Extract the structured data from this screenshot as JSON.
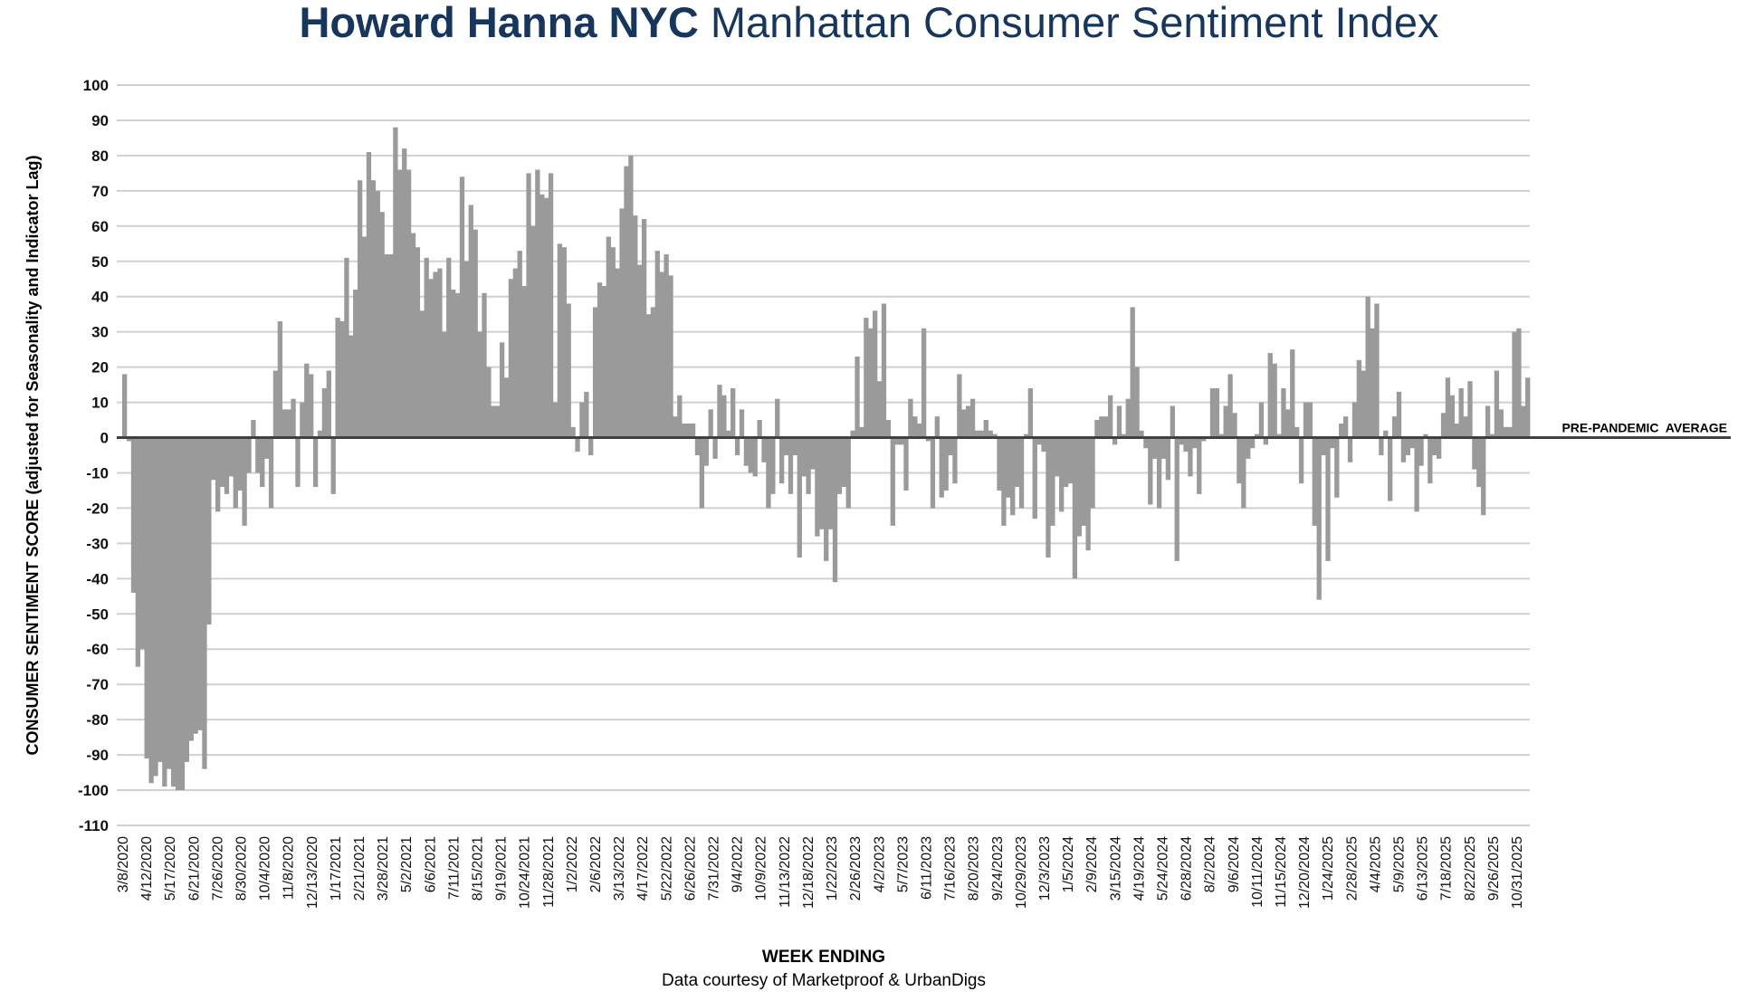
{
  "header": {
    "brand": "Howard Hanna NYC",
    "title_rest": "Manhattan Consumer Sentiment Index"
  },
  "footer": {
    "xlabel": "WEEK ENDING",
    "credit": "Data courtesy of Marketproof & UrbanDigs"
  },
  "colors": {
    "bar": "#9a9a9a",
    "grid": "#d0d0d0",
    "zero_line": "#404040",
    "title": "#17365d"
  },
  "chart_data": {
    "type": "bar",
    "title": "Howard Hanna NYC Manhattan Consumer Sentiment Index",
    "xlabel": "WEEK ENDING",
    "ylabel": "CONSUMER SENTIMENT SCORE (adjusted for Seasonality and Indicator Lag)",
    "ylim": [
      -110,
      100
    ],
    "yticks": [
      100,
      90,
      80,
      70,
      60,
      50,
      40,
      30,
      20,
      10,
      0,
      -10,
      -20,
      -30,
      -40,
      -50,
      -60,
      -70,
      -80,
      -90,
      -100,
      -110
    ],
    "grid": true,
    "reference_line": {
      "value": 0,
      "label": "PRE-PANDEMIC  AVERAGE"
    },
    "x_tick_labels": [
      "3/8/2020",
      "4/12/2020",
      "5/17/2020",
      "6/21/2020",
      "7/26/2020",
      "8/30/2020",
      "10/4/2020",
      "11/8/2020",
      "12/13/2020",
      "1/17/2021",
      "2/21/2021",
      "3/28/2021",
      "5/2/2021",
      "6/6/2021",
      "7/11/2021",
      "8/15/2021",
      "9/19/2021",
      "10/24/2021",
      "11/28/2021",
      "1/2/2022",
      "2/6/2022",
      "3/13/2022",
      "4/17/2022",
      "5/22/2022",
      "6/26/2022",
      "7/31/2022",
      "9/4/2022",
      "10/9/2022",
      "11/13/2022",
      "12/18/2022",
      "1/22/2023",
      "2/26/2023",
      "4/2/2023",
      "5/7/2023",
      "6/11/2023",
      "7/16/2023",
      "8/20/2023",
      "9/24/2023",
      "10/29/2023",
      "12/3/2023",
      "1/5/2024",
      "2/9/2024",
      "3/15/2024",
      "4/19/2024",
      "5/24/2024",
      "6/28/2024",
      "8/2/2024",
      "9/6/2024",
      "10/11/2024",
      "11/15/2024",
      "12/20/2024",
      "1/24/2025",
      "2/28/2025",
      "4/4/2025",
      "5/9/2025",
      "6/13/2025",
      "7/18/2025",
      "8/22/2025",
      "9/26/2025",
      "10/31/2025"
    ],
    "series": [
      {
        "values": [
          18,
          -1,
          -44,
          -65,
          -60,
          -91,
          -98,
          -96,
          -92,
          -99,
          -94,
          -99,
          -100,
          -100,
          -92,
          -86,
          -84,
          -83,
          -94,
          -53,
          -12,
          -21,
          -14,
          -16,
          -11,
          -20,
          -15,
          -25,
          -10,
          5,
          -10,
          -14,
          -6,
          -20,
          19,
          33,
          8,
          8,
          11,
          -14,
          10,
          21,
          18,
          -14,
          2,
          14,
          19,
          -16,
          34,
          33,
          51,
          29,
          42,
          73,
          57,
          81,
          73,
          70,
          64,
          52,
          52,
          88,
          76,
          82,
          76,
          58,
          54,
          36,
          51,
          45,
          47,
          48,
          30,
          51,
          42,
          41,
          74,
          50,
          66,
          59,
          30,
          41,
          20,
          9,
          9,
          27,
          17,
          45,
          48,
          53,
          43,
          75,
          60,
          76,
          69,
          68,
          75,
          10,
          55,
          54,
          38,
          3,
          -4,
          10,
          13,
          -5,
          37,
          44,
          43,
          57,
          54,
          48,
          65,
          77,
          80,
          63,
          49,
          62,
          35,
          37,
          53,
          47,
          52,
          46,
          6,
          12,
          4,
          4,
          4,
          -5,
          -20,
          -8,
          8,
          -6,
          15,
          12,
          2,
          14,
          -5,
          8,
          -8,
          -10,
          -11,
          5,
          -7,
          -20,
          -16,
          11,
          -13,
          -5,
          -16,
          -5,
          -34,
          -11,
          -16,
          -9,
          -28,
          -26,
          -35,
          -26,
          -41,
          -16,
          -14,
          -20,
          2,
          23,
          3,
          34,
          31,
          36,
          16,
          38,
          5,
          -25,
          -2,
          -2,
          -15,
          11,
          6,
          4,
          31,
          -1,
          -20,
          6,
          -17,
          -15,
          -5,
          -13,
          18,
          8,
          9,
          11,
          2,
          2,
          5,
          2,
          1,
          -15,
          -25,
          -17,
          -22,
          -14,
          -20,
          1,
          14,
          -23,
          -2,
          -4,
          -34,
          -25,
          -11,
          -21,
          -14,
          -13,
          -40,
          -28,
          -25,
          -32,
          -20,
          5,
          6,
          6,
          12,
          -2,
          9,
          1,
          11,
          37,
          20,
          2,
          -3,
          -19,
          -6,
          -20,
          -6,
          -12,
          9,
          -35,
          -2,
          -4,
          -11,
          -3,
          -16,
          -1,
          0,
          14,
          14,
          1,
          9,
          18,
          7,
          -13,
          -20,
          -6,
          -3,
          1,
          10,
          -2,
          24,
          21,
          1,
          14,
          8,
          25,
          3,
          -13,
          10,
          10,
          -25,
          -46,
          -5,
          -35,
          -3,
          -17,
          4,
          6,
          -7,
          10,
          22,
          19,
          40,
          31,
          38,
          -5,
          2,
          -18,
          6,
          13,
          -7,
          -5,
          -3,
          -21,
          -8,
          1,
          -13,
          -5,
          -6,
          7,
          17,
          12,
          4,
          14,
          6,
          16,
          -9,
          -14,
          -22,
          9,
          1,
          19,
          8,
          3,
          3,
          30,
          31,
          9,
          17
        ]
      }
    ]
  }
}
